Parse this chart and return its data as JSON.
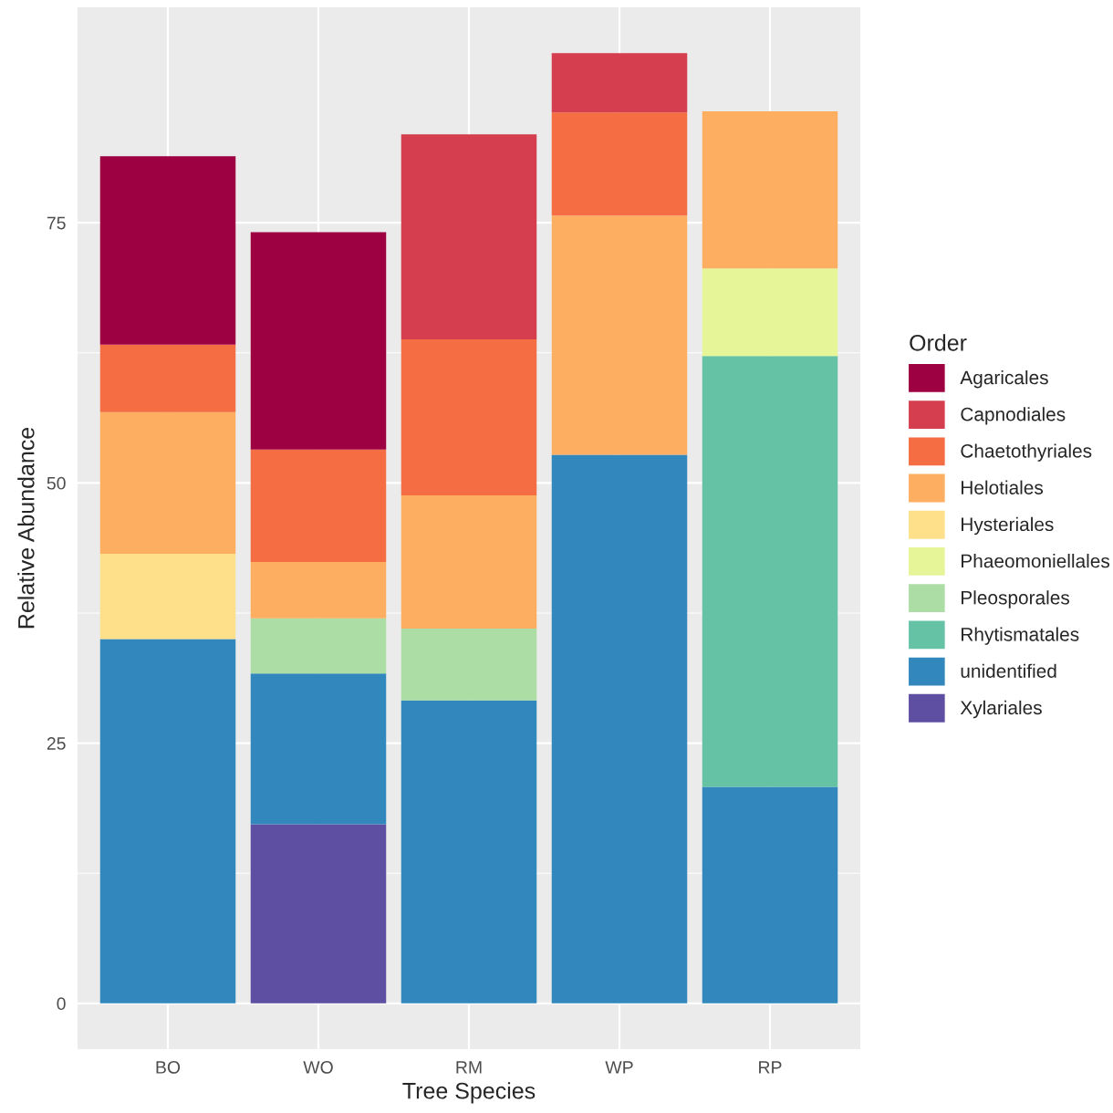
{
  "chart_data": {
    "type": "bar",
    "stacked": true,
    "xlabel": "Tree Species",
    "ylabel": "Relative Abundance",
    "legend_title": "Order",
    "legend": "right",
    "grid": true,
    "categories": [
      "BO",
      "WO",
      "RM",
      "WP",
      "RP"
    ],
    "ylim": [
      -4.4,
      95.7
    ],
    "yticks": [
      0,
      25,
      50,
      75
    ],
    "series": [
      {
        "name": "Xylariales",
        "color": "#5e4fa2",
        "values": [
          null,
          17.2,
          null,
          null,
          null
        ]
      },
      {
        "name": "unidentified",
        "color": "#3288bd",
        "values": [
          35.0,
          14.5,
          29.1,
          52.7,
          20.8
        ]
      },
      {
        "name": "Rhytismatales",
        "color": "#66c2a5",
        "values": [
          null,
          null,
          null,
          null,
          41.4
        ]
      },
      {
        "name": "Pleosporales",
        "color": "#abdda4",
        "values": [
          null,
          5.3,
          6.9,
          null,
          null
        ]
      },
      {
        "name": "Phaeomoniellales",
        "color": "#e6f598",
        "values": [
          null,
          null,
          null,
          null,
          8.4
        ]
      },
      {
        "name": "Hysteriales",
        "color": "#fee08b",
        "values": [
          8.2,
          null,
          null,
          null,
          null
        ]
      },
      {
        "name": "Helotiales",
        "color": "#fdae61",
        "values": [
          13.6,
          5.4,
          12.8,
          23.0,
          15.1
        ]
      },
      {
        "name": "Chaetothyriales",
        "color": "#f46d43",
        "values": [
          6.5,
          10.8,
          15.0,
          9.9,
          null
        ]
      },
      {
        "name": "Capnodiales",
        "color": "#d53e4f",
        "values": [
          null,
          null,
          19.7,
          5.7,
          null
        ]
      },
      {
        "name": "Agaricales",
        "color": "#9e0142",
        "values": [
          18.1,
          20.9,
          null,
          null,
          null
        ]
      }
    ]
  }
}
